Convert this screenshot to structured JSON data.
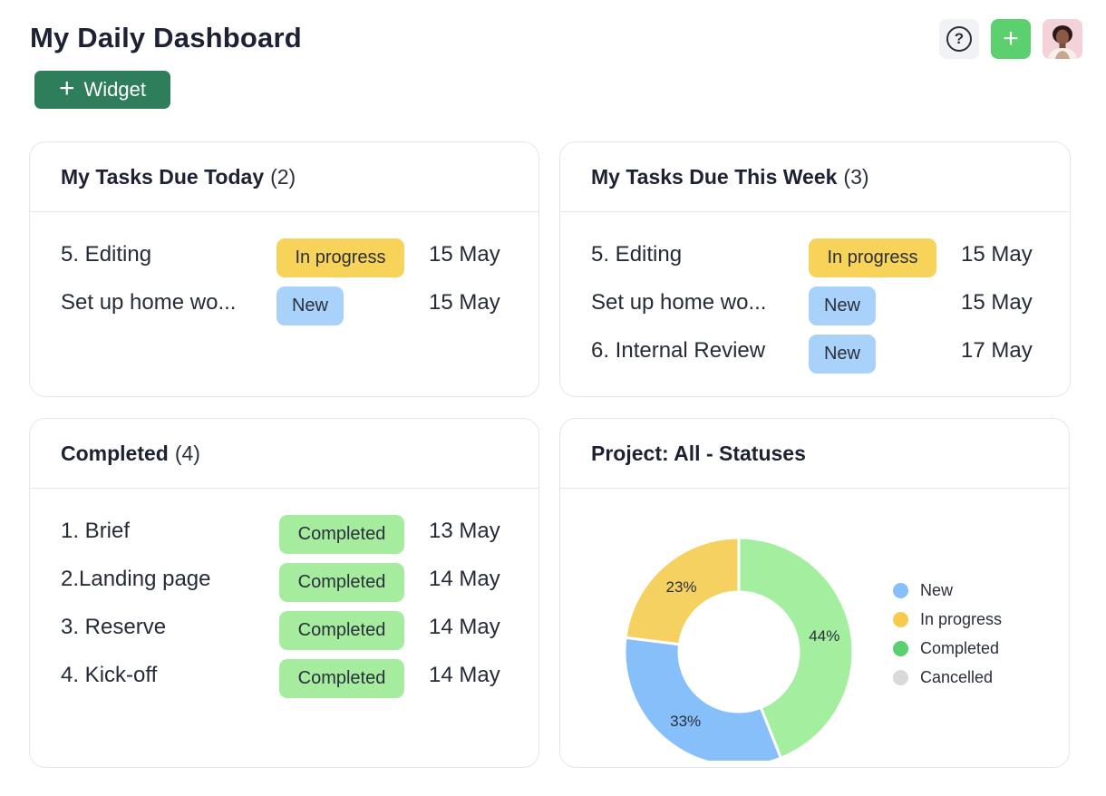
{
  "header": {
    "title": "My Daily Dashboard",
    "widget_button": {
      "plus": "+",
      "label": "Widget"
    },
    "help_symbol": "?",
    "add_symbol": "+"
  },
  "cards": {
    "today": {
      "title": "My Tasks Due Today",
      "count": "(2)",
      "tasks": [
        {
          "name": "5. Editing",
          "status": "In progress",
          "date": "15 May"
        },
        {
          "name": "Set up home wo...",
          "status": "New",
          "date": "15 May"
        }
      ]
    },
    "week": {
      "title": "My Tasks Due This Week",
      "count": "(3)",
      "tasks": [
        {
          "name": "5. Editing",
          "status": "In progress",
          "date": "15 May"
        },
        {
          "name": "Set up home wo...",
          "status": "New",
          "date": "15 May"
        },
        {
          "name": "6. Internal Review",
          "status": "New",
          "date": "17 May"
        }
      ]
    },
    "completed": {
      "title": "Completed",
      "count": "(4)",
      "tasks": [
        {
          "name": "1. Brief",
          "status": "Completed",
          "date": "13 May"
        },
        {
          "name": "2.Landing page",
          "status": "Completed",
          "date": "14 May"
        },
        {
          "name": "3. Reserve",
          "status": "Completed",
          "date": "14 May"
        },
        {
          "name": "4. Kick-off",
          "status": "Completed",
          "date": "14 May"
        }
      ]
    },
    "statuses": {
      "title": "Project: All - Statuses"
    }
  },
  "colors": {
    "widget_button": "#2e7d5b",
    "add_button": "#5ccf6e",
    "in_progress": "#f7d35a",
    "new": "#a9d2fb",
    "completed": "#a5ec9f"
  },
  "chart_data": {
    "type": "pie",
    "variant": "donut",
    "categories": [
      "New",
      "In progress",
      "Completed",
      "Cancelled"
    ],
    "values": [
      33,
      23,
      44,
      0
    ],
    "labels": [
      "33%",
      "23%",
      "44%",
      ""
    ],
    "colors": [
      "#86bff9",
      "#f5d162",
      "#a3ee9f",
      "#d9d9d9"
    ],
    "legend": {
      "placement": "right",
      "entries": [
        "New",
        "In progress",
        "Completed",
        "Cancelled"
      ],
      "dot_colors": [
        "#86bff9",
        "#f5ca4f",
        "#5ccf6e",
        "#d9d9d9"
      ]
    }
  }
}
